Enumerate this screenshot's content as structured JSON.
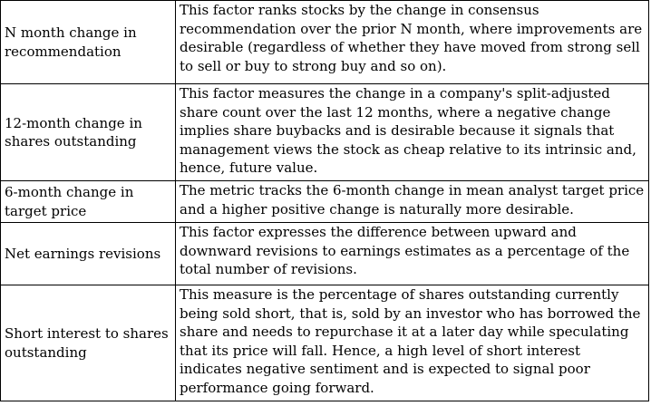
{
  "table": {
    "rows": [
      {
        "factor": "N month change in recommendation",
        "description": "This factor ranks stocks by the change in consensus recommendation over the prior N month, where improvements are desirable (regardless of whether they have moved from strong sell to sell or buy to strong buy and so on)."
      },
      {
        "factor": "12-month change in shares outstanding",
        "description": "This factor measures the change in a company's split-adjusted share count over the last 12 months, where a negative change implies share buybacks and is desirable because it signals that management views the stock as cheap relative to its intrinsic and, hence, future value."
      },
      {
        "factor": "6-month change in target price",
        "description": "The metric tracks the 6-month change in mean analyst target price and a higher positive change is naturally more desirable."
      },
      {
        "factor": "Net earnings revisions",
        "description": "This factor expresses the difference between upward and downward revisions to earnings estimates as a percentage of the total number of revisions."
      },
      {
        "factor": "Short interest to shares outstanding",
        "description": "This measure is the percentage of shares outstanding currently being sold short, that is, sold by an investor who has borrowed the share and needs to repurchase it at a later day while speculating that its price will fall. Hence, a high level of short interest indicates negative sentiment and is expected to signal poor performance going forward."
      }
    ]
  }
}
